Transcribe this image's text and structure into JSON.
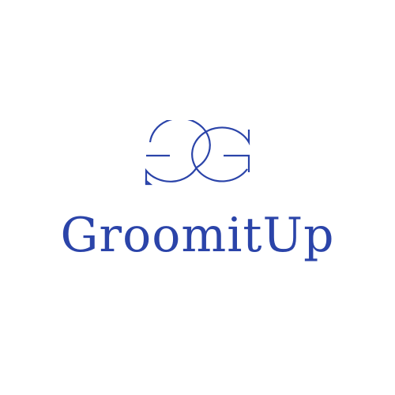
{
  "brand": {
    "name": "GroomitUp",
    "color": "#2b44a9"
  },
  "logo": {
    "icon": "gg-monogram-icon"
  }
}
